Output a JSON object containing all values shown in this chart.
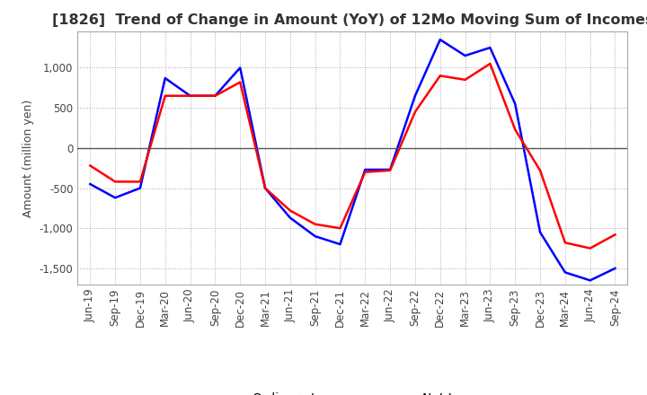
{
  "title": "[1826]  Trend of Change in Amount (YoY) of 12Mo Moving Sum of Incomes",
  "ylabel": "Amount (million yen)",
  "x_labels": [
    "Jun-19",
    "Sep-19",
    "Dec-19",
    "Mar-20",
    "Jun-20",
    "Sep-20",
    "Dec-20",
    "Mar-21",
    "Jun-21",
    "Sep-21",
    "Dec-21",
    "Mar-22",
    "Jun-22",
    "Sep-22",
    "Dec-22",
    "Mar-23",
    "Jun-23",
    "Sep-23",
    "Dec-23",
    "Mar-24",
    "Jun-24",
    "Sep-24"
  ],
  "ordinary_income": [
    -450,
    -620,
    -500,
    870,
    650,
    650,
    1000,
    -500,
    -870,
    -1100,
    -1200,
    -270,
    -270,
    650,
    1350,
    1150,
    1250,
    550,
    -1050,
    -1550,
    -1650,
    -1500
  ],
  "net_income": [
    -220,
    -420,
    -420,
    650,
    650,
    650,
    820,
    -500,
    -780,
    -950,
    -1000,
    -300,
    -280,
    450,
    900,
    850,
    1050,
    230,
    -280,
    -1180,
    -1250,
    -1080
  ],
  "ordinary_color": "#0000ff",
  "net_color": "#ff0000",
  "ylim": [
    -1700,
    1450
  ],
  "yticks": [
    -1500,
    -1000,
    -500,
    0,
    500,
    1000
  ],
  "background_color": "#ffffff",
  "grid_color": "#aaaaaa",
  "title_fontsize": 11.5,
  "axis_fontsize": 9,
  "tick_fontsize": 8.5,
  "legend_fontsize": 10
}
